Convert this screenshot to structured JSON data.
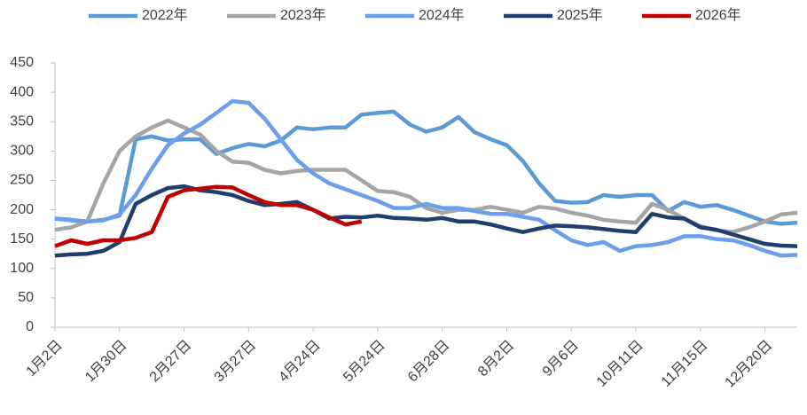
{
  "chart_data": {
    "type": "line",
    "categories": [
      "1月2日",
      null,
      null,
      null,
      "1月30日",
      null,
      null,
      null,
      "2月27日",
      null,
      null,
      null,
      "3月27日",
      null,
      null,
      null,
      "4月24日",
      null,
      null,
      null,
      "5月24日",
      null,
      null,
      null,
      "6月28日",
      null,
      null,
      null,
      "8月2日",
      null,
      null,
      null,
      "9月6日",
      null,
      null,
      null,
      "10月11日",
      null,
      null,
      null,
      "11月15日",
      null,
      null,
      null,
      "12月20日",
      null,
      null
    ],
    "series": [
      {
        "name": "2022年",
        "color": "#5b9bd5",
        "values": [
          185,
          182,
          180,
          183,
          190,
          320,
          325,
          318,
          320,
          320,
          295,
          305,
          312,
          308,
          318,
          340,
          337,
          340,
          340,
          362,
          365,
          367,
          345,
          333,
          340,
          358,
          332,
          320,
          310,
          283,
          245,
          215,
          212,
          213,
          225,
          222,
          225,
          225,
          198,
          213,
          205,
          208,
          200,
          190,
          180,
          176,
          178
        ]
      },
      {
        "name": "2023年",
        "color": "#a5a5a5",
        "values": [
          166,
          170,
          180,
          245,
          300,
          325,
          340,
          352,
          340,
          328,
          300,
          282,
          280,
          268,
          262,
          266,
          268,
          268,
          268,
          250,
          232,
          230,
          222,
          203,
          195,
          200,
          200,
          205,
          200,
          195,
          205,
          202,
          195,
          190,
          183,
          180,
          178,
          210,
          200,
          185,
          172,
          165,
          162,
          170,
          180,
          192,
          195
        ]
      },
      {
        "name": "2024年",
        "color": "#6d9eeb",
        "values": [
          185,
          183,
          180,
          182,
          192,
          225,
          270,
          310,
          330,
          345,
          365,
          385,
          382,
          355,
          320,
          285,
          262,
          245,
          235,
          225,
          215,
          203,
          203,
          210,
          203,
          203,
          198,
          193,
          193,
          188,
          183,
          165,
          148,
          140,
          145,
          130,
          138,
          140,
          145,
          155,
          155,
          150,
          148,
          140,
          130,
          122,
          123
        ]
      },
      {
        "name": "2025年",
        "color": "#1f3f6e",
        "values": [
          122,
          124,
          125,
          130,
          145,
          210,
          225,
          237,
          240,
          233,
          230,
          225,
          215,
          208,
          210,
          213,
          200,
          185,
          188,
          187,
          190,
          186,
          185,
          183,
          186,
          180,
          180,
          175,
          168,
          162,
          168,
          173,
          172,
          170,
          167,
          164,
          162,
          193,
          187,
          185,
          170,
          166,
          158,
          150,
          142,
          139,
          138
        ]
      },
      {
        "name": "2026年",
        "color": "#c00000",
        "values": [
          138,
          148,
          142,
          148,
          148,
          152,
          162,
          222,
          233,
          236,
          239,
          238,
          225,
          213,
          208,
          208,
          200,
          187,
          175,
          180,
          null,
          null,
          null,
          null,
          null,
          null,
          null,
          null,
          null,
          null,
          null,
          null,
          null,
          null,
          null,
          null,
          null,
          null,
          null,
          null,
          null,
          null,
          null,
          null,
          null,
          null,
          null
        ]
      }
    ],
    "ylim": [
      0,
      450
    ],
    "yticks": [
      0,
      50,
      100,
      150,
      200,
      250,
      300,
      350,
      400,
      450
    ],
    "grid": false
  }
}
